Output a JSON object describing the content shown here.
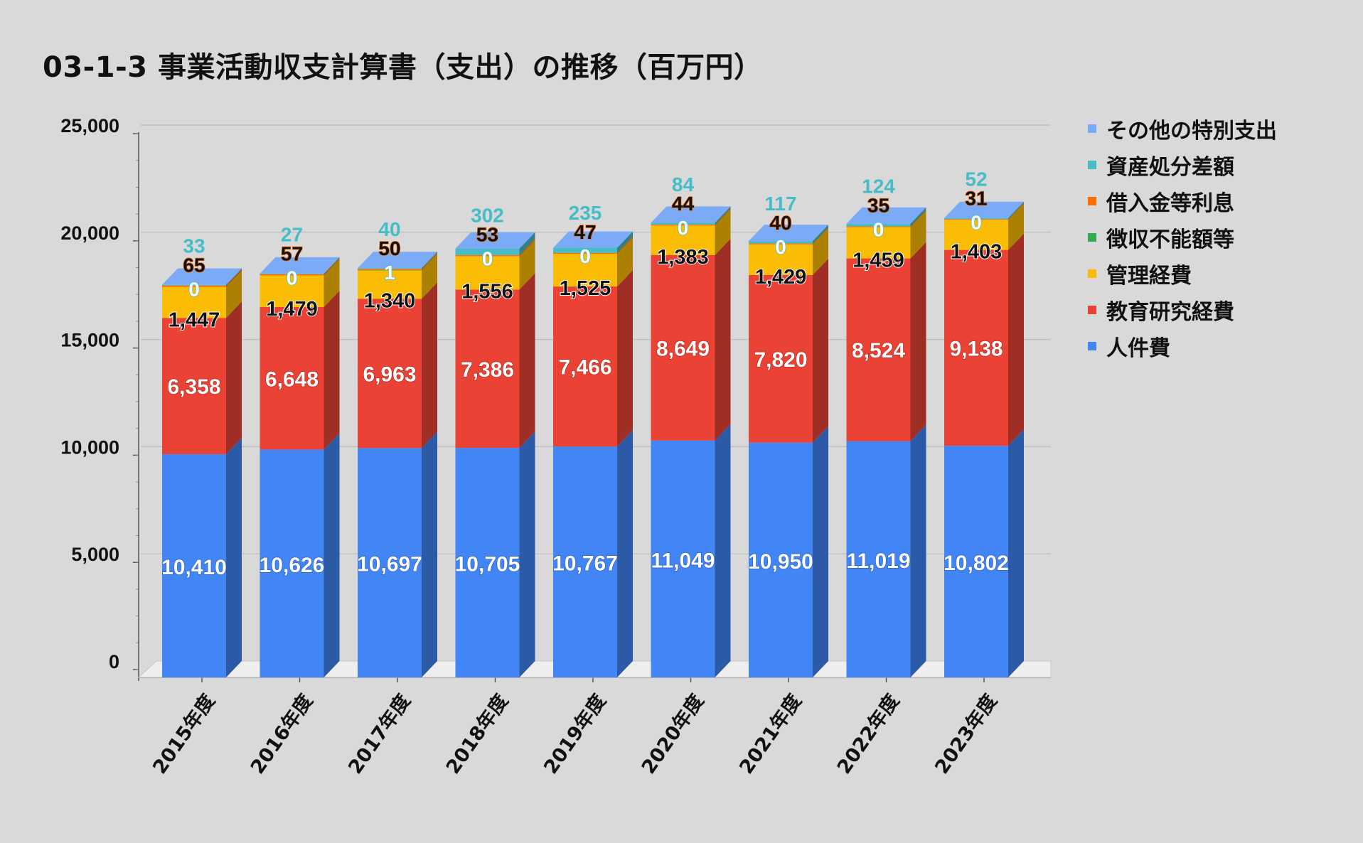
{
  "title": "03-1-3 事業活動収支計算書（支出）の推移（百万円）",
  "chart_data": {
    "type": "bar",
    "stacked": true,
    "style": "3d",
    "categories": [
      "2015年度",
      "2016年度",
      "2017年度",
      "2018年度",
      "2019年度",
      "2020年度",
      "2021年度",
      "2022年度",
      "2023年度"
    ],
    "ylim": [
      0,
      25000
    ],
    "yticks": [
      "0",
      "5,000",
      "10,000",
      "15,000",
      "20,000",
      "25,000"
    ],
    "grid": true,
    "legend_position": "right",
    "series": [
      {
        "name": "人件費",
        "color": "#4285f4",
        "label_color": "#ffffff",
        "values": [
          10410,
          10626,
          10697,
          10705,
          10767,
          11049,
          10950,
          11019,
          10802
        ],
        "labels": [
          "10,410",
          "10,626",
          "10,697",
          "10,705",
          "10,767",
          "11,049",
          "10,950",
          "11,019",
          "10,802"
        ]
      },
      {
        "name": "教育研究経費",
        "color": "#ea4335",
        "label_color": "#ffffff",
        "values": [
          6358,
          6648,
          6963,
          7386,
          7466,
          8649,
          7820,
          8524,
          9138
        ],
        "labels": [
          "6,358",
          "6,648",
          "6,963",
          "7,386",
          "7,466",
          "8,649",
          "7,820",
          "8,524",
          "9,138"
        ]
      },
      {
        "name": "管理経費",
        "color": "#fbbc04",
        "label_color": "#111111",
        "values": [
          1447,
          1479,
          1340,
          1556,
          1525,
          1383,
          1429,
          1459,
          1403
        ],
        "labels": [
          "1,447",
          "1,479",
          "1,340",
          "1,556",
          "1,525",
          "1,383",
          "1,429",
          "1,459",
          "1,403"
        ]
      },
      {
        "name": "徴収不能額等",
        "color": "#34a853",
        "label_color": "#ffffff",
        "values": [
          0,
          0,
          1,
          0,
          0,
          0,
          0,
          0,
          0
        ],
        "labels": [
          "0",
          "0",
          "1",
          "0",
          "0",
          "0",
          "0",
          "0",
          "0"
        ]
      },
      {
        "name": "借入金等利息",
        "color": "#ff6d01",
        "label_color": "#111111",
        "values": [
          65,
          57,
          50,
          53,
          47,
          44,
          40,
          35,
          31
        ],
        "labels": [
          "65",
          "57",
          "50",
          "53",
          "47",
          "44",
          "40",
          "35",
          "31"
        ]
      },
      {
        "name": "資産処分差額",
        "color": "#46bdc6",
        "label_color": "#46bdc6",
        "values": [
          33,
          27,
          40,
          302,
          235,
          84,
          117,
          124,
          52
        ],
        "labels": [
          "33",
          "27",
          "40",
          "302",
          "235",
          "84",
          "117",
          "124",
          "52"
        ]
      },
      {
        "name": "その他の特別支出",
        "color": "#7baaf7",
        "label_color": "#7baaf7",
        "values": [
          0,
          0,
          0,
          0,
          0,
          0,
          0,
          0,
          0
        ],
        "labels": []
      }
    ]
  }
}
